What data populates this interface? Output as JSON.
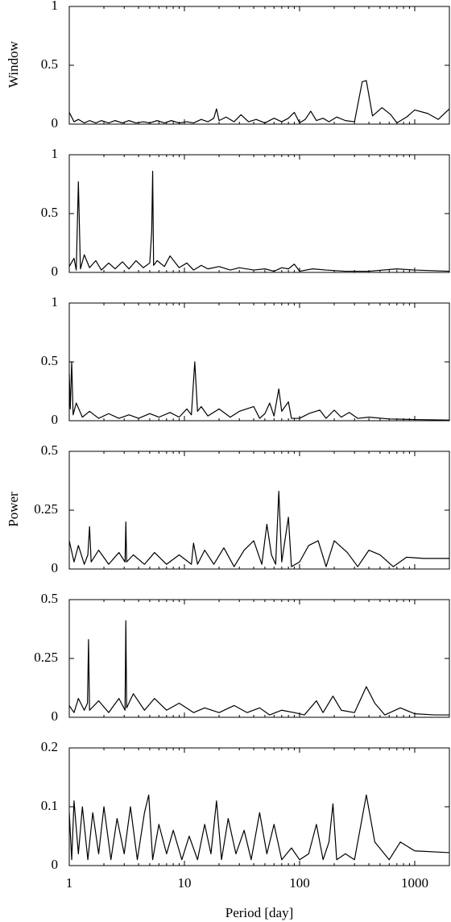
{
  "chart_data": [
    {
      "type": "line",
      "ylabel": "Window",
      "xscale": "log",
      "xlim": [
        1,
        2000
      ],
      "ylim": [
        0,
        1
      ],
      "yticks": [
        0,
        0.5,
        1
      ],
      "color": "#000000",
      "x": [
        1,
        1.1,
        1.2,
        1.35,
        1.5,
        1.7,
        1.9,
        2.2,
        2.5,
        2.9,
        3.3,
        3.8,
        4.4,
        5,
        5.8,
        6.7,
        7.7,
        9,
        10.5,
        12,
        14,
        16,
        18,
        19,
        20,
        23,
        27,
        31,
        36,
        42,
        50,
        60,
        70,
        80,
        90,
        100,
        112,
        125,
        140,
        160,
        180,
        210,
        250,
        300,
        350,
        380,
        430,
        520,
        620,
        700,
        850,
        1000,
        1300,
        1600,
        2000
      ],
      "values": [
        0.1,
        0.02,
        0.04,
        0.01,
        0.03,
        0.01,
        0.03,
        0.01,
        0.03,
        0.01,
        0.03,
        0.01,
        0.02,
        0.01,
        0.03,
        0.01,
        0.03,
        0.01,
        0.02,
        0.01,
        0.04,
        0.02,
        0.05,
        0.13,
        0.03,
        0.06,
        0.02,
        0.08,
        0.02,
        0.04,
        0.01,
        0.05,
        0.02,
        0.05,
        0.1,
        0.01,
        0.04,
        0.11,
        0.03,
        0.05,
        0.02,
        0.06,
        0.03,
        0.02,
        0.36,
        0.37,
        0.07,
        0.14,
        0.08,
        0.01,
        0.06,
        0.12,
        0.09,
        0.04,
        0.13
      ]
    },
    {
      "type": "line",
      "xscale": "log",
      "xlim": [
        1,
        2000
      ],
      "ylim": [
        0,
        1
      ],
      "yticks": [
        0,
        0.5,
        1
      ],
      "color": "#000000",
      "x": [
        1,
        1.1,
        1.15,
        1.2,
        1.25,
        1.35,
        1.5,
        1.7,
        1.9,
        2.2,
        2.5,
        2.9,
        3.3,
        3.8,
        4.4,
        5,
        5.2,
        5.3,
        5.4,
        5.8,
        6.7,
        7.5,
        9,
        10.5,
        12,
        14,
        16,
        20,
        25,
        30,
        40,
        50,
        60,
        70,
        80,
        90,
        100,
        130,
        170,
        250,
        400,
        700,
        1000,
        2000
      ],
      "values": [
        0.05,
        0.12,
        0.02,
        0.77,
        0.03,
        0.15,
        0.04,
        0.1,
        0.02,
        0.08,
        0.03,
        0.09,
        0.03,
        0.1,
        0.04,
        0.08,
        0.35,
        0.86,
        0.06,
        0.1,
        0.05,
        0.14,
        0.04,
        0.08,
        0.02,
        0.06,
        0.03,
        0.05,
        0.02,
        0.04,
        0.02,
        0.03,
        0.01,
        0.04,
        0.03,
        0.07,
        0.01,
        0.03,
        0.02,
        0.01,
        0.01,
        0.03,
        0.02,
        0.01
      ]
    },
    {
      "type": "line",
      "xscale": "log",
      "xlim": [
        1,
        2000
      ],
      "ylim": [
        0,
        1
      ],
      "yticks": [
        0,
        0.5,
        1
      ],
      "color": "#000000",
      "x": [
        1,
        1.02,
        1.05,
        1.08,
        1.15,
        1.3,
        1.5,
        1.8,
        2.2,
        2.7,
        3.3,
        4,
        5,
        6,
        7.5,
        9,
        10.5,
        11.5,
        12.3,
        13,
        14,
        16,
        20,
        25,
        30,
        40,
        45,
        50,
        55,
        60,
        66,
        70,
        80,
        85,
        100,
        120,
        150,
        170,
        200,
        230,
        270,
        320,
        400,
        600,
        1000,
        2000
      ],
      "values": [
        0.4,
        0.1,
        0.5,
        0.05,
        0.15,
        0.03,
        0.08,
        0.02,
        0.06,
        0.02,
        0.05,
        0.02,
        0.06,
        0.03,
        0.07,
        0.03,
        0.1,
        0.05,
        0.5,
        0.08,
        0.12,
        0.04,
        0.1,
        0.03,
        0.08,
        0.12,
        0.02,
        0.06,
        0.15,
        0.04,
        0.27,
        0.08,
        0.16,
        0.02,
        0.02,
        0.06,
        0.09,
        0.02,
        0.09,
        0.03,
        0.07,
        0.02,
        0.03,
        0.015,
        0.01,
        0.005
      ]
    },
    {
      "type": "line",
      "ylabel": "Power",
      "xscale": "log",
      "xlim": [
        1,
        2000
      ],
      "ylim": [
        0,
        0.5
      ],
      "yticks": [
        0,
        0.25,
        0.5
      ],
      "color": "#000000",
      "x": [
        1,
        1.1,
        1.2,
        1.35,
        1.45,
        1.5,
        1.55,
        1.8,
        2.2,
        2.7,
        3.05,
        3.1,
        3.15,
        3.6,
        4.5,
        5.5,
        7,
        9,
        11.5,
        12,
        13,
        15,
        18,
        22,
        27,
        33,
        40,
        47,
        52,
        57,
        62,
        66,
        70,
        80,
        85,
        100,
        120,
        145,
        170,
        200,
        260,
        320,
        400,
        500,
        650,
        850,
        1200,
        2000
      ],
      "values": [
        0.12,
        0.03,
        0.1,
        0.02,
        0.06,
        0.18,
        0.03,
        0.08,
        0.02,
        0.07,
        0.03,
        0.2,
        0.03,
        0.06,
        0.02,
        0.07,
        0.02,
        0.06,
        0.02,
        0.11,
        0.02,
        0.08,
        0.02,
        0.09,
        0.01,
        0.08,
        0.12,
        0.02,
        0.19,
        0.06,
        0.02,
        0.33,
        0.03,
        0.22,
        0.01,
        0.03,
        0.1,
        0.12,
        0.01,
        0.12,
        0.07,
        0.01,
        0.08,
        0.06,
        0.01,
        0.05,
        0.045,
        0.045
      ]
    },
    {
      "type": "line",
      "xscale": "log",
      "xlim": [
        1,
        2000
      ],
      "ylim": [
        0,
        0.5
      ],
      "yticks": [
        0,
        0.25,
        0.5
      ],
      "color": "#000000",
      "x": [
        1,
        1.1,
        1.2,
        1.35,
        1.44,
        1.47,
        1.5,
        1.8,
        2.2,
        2.7,
        3.05,
        3.1,
        3.15,
        3.6,
        4.5,
        5.5,
        7,
        9,
        12,
        15,
        20,
        27,
        35,
        45,
        55,
        70,
        90,
        110,
        140,
        160,
        195,
        230,
        300,
        380,
        450,
        550,
        750,
        1000,
        1500,
        2000
      ],
      "values": [
        0.05,
        0.02,
        0.08,
        0.03,
        0.06,
        0.33,
        0.03,
        0.07,
        0.02,
        0.08,
        0.03,
        0.41,
        0.04,
        0.1,
        0.03,
        0.08,
        0.03,
        0.06,
        0.02,
        0.04,
        0.02,
        0.05,
        0.02,
        0.04,
        0.01,
        0.03,
        0.02,
        0.01,
        0.07,
        0.02,
        0.09,
        0.03,
        0.02,
        0.13,
        0.06,
        0.01,
        0.04,
        0.015,
        0.01,
        0.01
      ]
    },
    {
      "type": "line",
      "xlabel": "Period [day]",
      "xscale": "log",
      "xlim": [
        1,
        2000
      ],
      "xticks": [
        1,
        10,
        100,
        1000
      ],
      "ylim": [
        0,
        0.2
      ],
      "yticks": [
        0,
        0.1,
        0.2
      ],
      "color": "#000000",
      "x": [
        1,
        1.05,
        1.1,
        1.2,
        1.3,
        1.45,
        1.6,
        1.8,
        2,
        2.3,
        2.6,
        3,
        3.4,
        3.9,
        4.5,
        4.9,
        5.3,
        6,
        7,
        8,
        9.5,
        11,
        13,
        15,
        17,
        19,
        21,
        24,
        28,
        33,
        38,
        45,
        52,
        60,
        70,
        85,
        100,
        120,
        140,
        160,
        180,
        195,
        210,
        250,
        300,
        380,
        450,
        600,
        750,
        1000,
        2000
      ],
      "values": [
        0.09,
        0.01,
        0.11,
        0.02,
        0.1,
        0.01,
        0.09,
        0.02,
        0.1,
        0.01,
        0.08,
        0.02,
        0.1,
        0.01,
        0.09,
        0.12,
        0.01,
        0.07,
        0.02,
        0.06,
        0.01,
        0.05,
        0.01,
        0.07,
        0.02,
        0.11,
        0.01,
        0.08,
        0.02,
        0.06,
        0.01,
        0.09,
        0.02,
        0.07,
        0.01,
        0.03,
        0.01,
        0.02,
        0.07,
        0.01,
        0.04,
        0.105,
        0.01,
        0.02,
        0.01,
        0.12,
        0.04,
        0.01,
        0.04,
        0.025,
        0.022
      ]
    }
  ]
}
